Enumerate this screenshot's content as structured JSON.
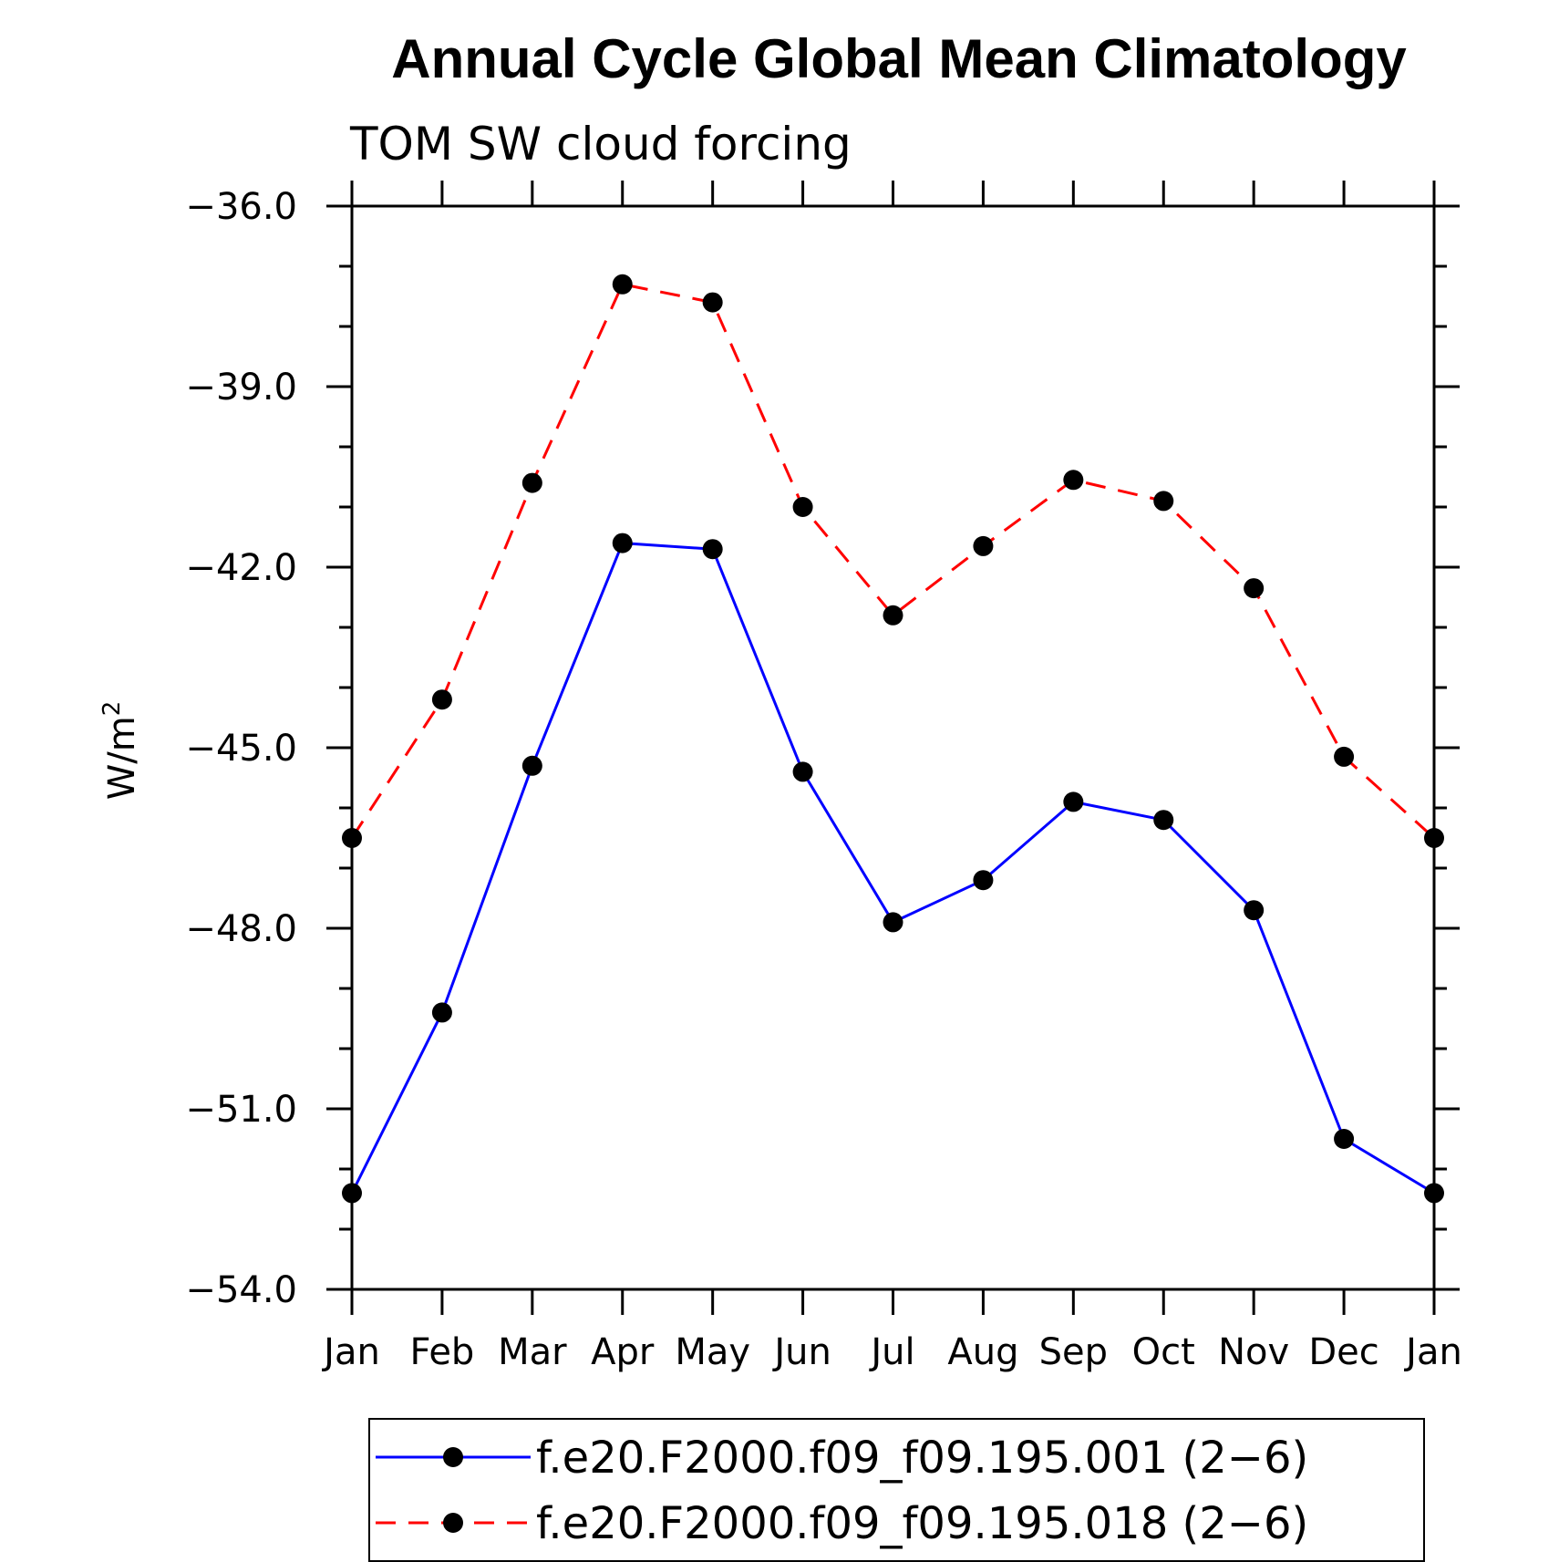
{
  "chart_data": {
    "type": "line",
    "title": "Annual Cycle Global Mean Climatology",
    "subtitle": "TOM SW cloud forcing",
    "xlabel": "",
    "ylabel": "W/m",
    "ylabel_superscript": "2",
    "categories": [
      "Jan",
      "Feb",
      "Mar",
      "Apr",
      "May",
      "Jun",
      "Jul",
      "Aug",
      "Sep",
      "Oct",
      "Nov",
      "Dec",
      "Jan"
    ],
    "ylim": [
      -54.0,
      -36.0
    ],
    "yticks": [
      -54.0,
      -51.0,
      -48.0,
      -45.0,
      -42.0,
      -39.0,
      -36.0
    ],
    "yticks_labels": [
      "−54.0",
      "−51.0",
      "−48.0",
      "−45.0",
      "−42.0",
      "−39.0",
      "−36.0"
    ],
    "y_minor_step": 1.0,
    "grid": false,
    "legend_position": "bottom",
    "series": [
      {
        "name": "f.e20.F2000.f09_f09.195.001 (2−6)",
        "color": "#0000ff",
        "dash": "solid",
        "marker": "filled-circle",
        "values": [
          -52.4,
          -49.4,
          -45.3,
          -41.6,
          -41.7,
          -45.4,
          -47.9,
          -47.2,
          -45.9,
          -46.2,
          -47.7,
          -51.5,
          -52.4
        ]
      },
      {
        "name": "f.e20.F2000.f09_f09.195.018 (2−6)",
        "color": "#ff0000",
        "dash": "dashed",
        "marker": "filled-circle",
        "values": [
          -46.5,
          -44.2,
          -40.6,
          -37.3,
          -37.6,
          -41.0,
          -42.8,
          -41.65,
          -40.55,
          -40.9,
          -42.35,
          -45.15,
          -46.5
        ]
      }
    ]
  }
}
